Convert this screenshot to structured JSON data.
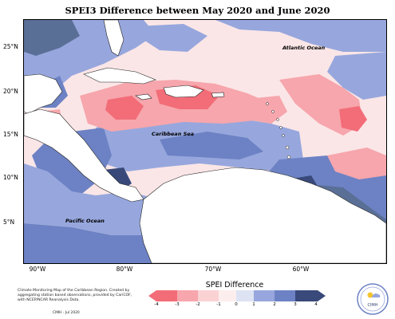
{
  "title": "SPEI3 Difference between May 2020 and June 2020",
  "latitude_labels": [
    "25°N",
    "20°N",
    "15°N",
    "10°N",
    "5°N"
  ],
  "longitude_labels": [
    "90°W",
    "80°W",
    "70°W",
    "60°W"
  ],
  "map_labels": {
    "atlantic": "Atlantic Ocean",
    "caribbean": "Caribbean Sea",
    "pacific": "Pacific Ocean"
  },
  "legend": {
    "title": "SPEI Difference",
    "ticks": [
      "-4",
      "-3",
      "-2",
      "-1",
      "0",
      "1",
      "2",
      "3",
      "4"
    ],
    "colors": [
      "#f26d78",
      "#f6a6ac",
      "#fbd2d4",
      "#fdeeee",
      "#dde3f3",
      "#97a7dd",
      "#6d82c4",
      "#5a6f96",
      "#38497a"
    ]
  },
  "footnote": "Climate Monitoring Map of the Caribbean Region. Created by aggregating station based observations, provided by CariCOF, with NCEP/NCAR Reanalysis Data.",
  "credit": "CIMH - Jul 2020",
  "logo_text": "CIMH",
  "colors": {
    "strong_wet": "#38497a",
    "wet": "#6d82c4",
    "slight_wet": "#97a7dd",
    "neutral": "#dde3f3",
    "slight_dry": "#fbd2d4",
    "dry": "#f26d78",
    "land": "#ffffff"
  }
}
